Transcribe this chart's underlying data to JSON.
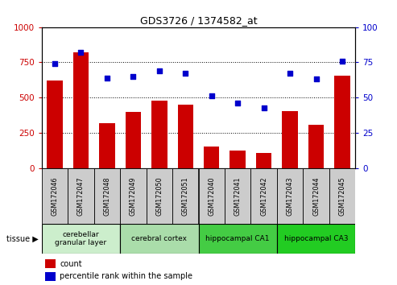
{
  "title": "GDS3726 / 1374582_at",
  "samples": [
    "GSM172046",
    "GSM172047",
    "GSM172048",
    "GSM172049",
    "GSM172050",
    "GSM172051",
    "GSM172040",
    "GSM172041",
    "GSM172042",
    "GSM172043",
    "GSM172044",
    "GSM172045"
  ],
  "counts": [
    620,
    820,
    320,
    400,
    480,
    450,
    155,
    125,
    110,
    405,
    305,
    655
  ],
  "percentiles": [
    74,
    82,
    64,
    65,
    69,
    67,
    51,
    46,
    43,
    67,
    63,
    76
  ],
  "bar_color": "#cc0000",
  "dot_color": "#0000cc",
  "ylim_left": [
    0,
    1000
  ],
  "ylim_right": [
    0,
    100
  ],
  "yticks_left": [
    0,
    250,
    500,
    750,
    1000
  ],
  "yticks_right": [
    0,
    25,
    50,
    75,
    100
  ],
  "tissue_groups": [
    {
      "label": "cerebellar\ngranular layer",
      "start": 0,
      "end": 3,
      "color": "#cceecc"
    },
    {
      "label": "cerebral cortex",
      "start": 3,
      "end": 6,
      "color": "#aaddaa"
    },
    {
      "label": "hippocampal CA1",
      "start": 6,
      "end": 9,
      "color": "#44cc44"
    },
    {
      "label": "hippocampal CA3",
      "start": 9,
      "end": 12,
      "color": "#22cc22"
    }
  ],
  "legend_count_label": "count",
  "legend_pct_label": "percentile rank within the sample",
  "tissue_label": "tissue",
  "sample_bg_color": "#cccccc",
  "plot_bg_color": "#ffffff"
}
